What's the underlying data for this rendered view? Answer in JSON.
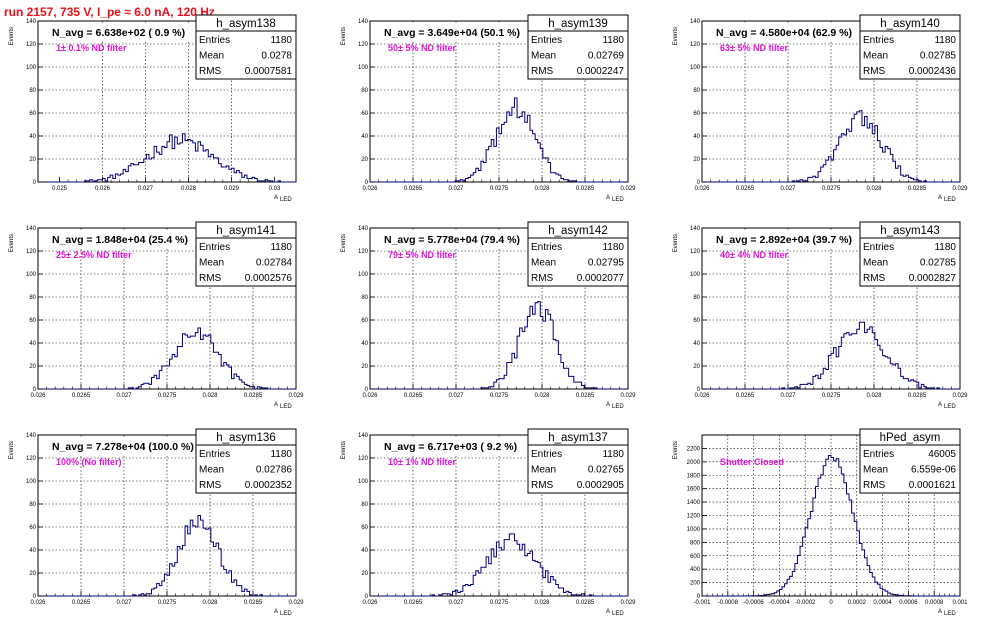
{
  "run_title": "run 2157,   735 V, I_pe ≈ 6.0 nA, 120 Hz",
  "ylabel_text": "Events",
  "xlabel_main": "A",
  "xlabel_sub": "LED",
  "colors": {
    "title": "#e8101a",
    "filter": "#e00fd8",
    "hist": "#00007a",
    "grid": "#000000"
  },
  "chart_data": [
    {
      "type": "histogram",
      "name": "h_asym138",
      "navg": "N_avg = 6.638e+02 ( 0.9 %)",
      "filter": "1± 0.1% ND filter",
      "stats": {
        "Entries": "1180",
        "Mean": "0.0278",
        "RMS": "0.0007581"
      },
      "xlim": [
        0.0245,
        0.0305
      ],
      "ylim": [
        0,
        140
      ],
      "xticks": [
        0.025,
        0.026,
        0.027,
        0.028,
        0.029,
        0.03
      ],
      "xtick_labels": [
        "0.025",
        "0.026",
        "0.027",
        "0.028",
        "0.029",
        "0.03"
      ],
      "yticks": [
        0,
        20,
        40,
        60,
        80,
        100,
        120,
        140
      ],
      "ytick_labels": [
        "0",
        "20",
        "40",
        "60",
        "80",
        "100",
        "120",
        "140"
      ],
      "peak": 40,
      "mean": 0.0278,
      "rms": 0.0007581
    },
    {
      "type": "histogram",
      "name": "h_asym139",
      "navg": "N_avg = 3.649e+04 (50.1 %)",
      "filter": "50± 5% ND filter",
      "stats": {
        "Entries": "1180",
        "Mean": "0.02769",
        "RMS": "0.0002247"
      },
      "xlim": [
        0.026,
        0.029
      ],
      "ylim": [
        0,
        140
      ],
      "xticks": [
        0.026,
        0.0265,
        0.027,
        0.0275,
        0.028,
        0.0285,
        0.029
      ],
      "xtick_labels": [
        "0.026",
        "0.0265",
        "0.027",
        "0.0275",
        "0.028",
        "0.0285",
        "0.029"
      ],
      "yticks": [
        0,
        20,
        40,
        60,
        80,
        100,
        120,
        140
      ],
      "ytick_labels": [
        "0",
        "20",
        "40",
        "60",
        "80",
        "100",
        "120",
        "140"
      ],
      "peak": 72,
      "mean": 0.02769,
      "rms": 0.0002247
    },
    {
      "type": "histogram",
      "name": "h_asym140",
      "navg": "N_avg = 4.580e+04 (62.9 %)",
      "filter": "63± 5% ND filter",
      "stats": {
        "Entries": "1180",
        "Mean": "0.02785",
        "RMS": "0.0002436"
      },
      "xlim": [
        0.026,
        0.029
      ],
      "ylim": [
        0,
        140
      ],
      "xticks": [
        0.026,
        0.0265,
        0.027,
        0.0275,
        0.028,
        0.0285,
        0.029
      ],
      "xtick_labels": [
        "0.026",
        "0.0265",
        "0.027",
        "0.0275",
        "0.028",
        "0.0285",
        "0.029"
      ],
      "yticks": [
        0,
        20,
        40,
        60,
        80,
        100,
        120,
        140
      ],
      "ytick_labels": [
        "0",
        "20",
        "40",
        "60",
        "80",
        "100",
        "120",
        "140"
      ],
      "peak": 64,
      "mean": 0.02785,
      "rms": 0.0002436
    },
    {
      "type": "histogram",
      "name": "h_asym141",
      "navg": "N_avg = 1.848e+04 (25.4 %)",
      "filter": "25± 2.5% ND filter",
      "stats": {
        "Entries": "1180",
        "Mean": "0.02784",
        "RMS": "0.0002576"
      },
      "xlim": [
        0.026,
        0.029
      ],
      "ylim": [
        0,
        140
      ],
      "xticks": [
        0.026,
        0.0265,
        0.027,
        0.0275,
        0.028,
        0.0285,
        0.029
      ],
      "xtick_labels": [
        "0.026",
        "0.0265",
        "0.027",
        "0.0275",
        "0.028",
        "0.0285",
        "0.029"
      ],
      "yticks": [
        0,
        20,
        40,
        60,
        80,
        100,
        120,
        140
      ],
      "ytick_labels": [
        "0",
        "20",
        "40",
        "60",
        "80",
        "100",
        "120",
        "140"
      ],
      "peak": 55,
      "mean": 0.02784,
      "rms": 0.0002576
    },
    {
      "type": "histogram",
      "name": "h_asym142",
      "navg": "N_avg = 5.778e+04 (79.4 %)",
      "filter": "79± 5% ND filter",
      "stats": {
        "Entries": "1180",
        "Mean": "0.02795",
        "RMS": "0.0002077"
      },
      "xlim": [
        0.026,
        0.029
      ],
      "ylim": [
        0,
        140
      ],
      "xticks": [
        0.026,
        0.0265,
        0.027,
        0.0275,
        0.028,
        0.0285,
        0.029
      ],
      "xtick_labels": [
        "0.026",
        "0.0265",
        "0.027",
        "0.0275",
        "0.028",
        "0.0285",
        "0.029"
      ],
      "yticks": [
        0,
        20,
        40,
        60,
        80,
        100,
        120,
        140
      ],
      "ytick_labels": [
        "0",
        "20",
        "40",
        "60",
        "80",
        "100",
        "120",
        "140"
      ],
      "peak": 80,
      "mean": 0.02795,
      "rms": 0.0002077
    },
    {
      "type": "histogram",
      "name": "h_asym143",
      "navg": "N_avg = 2.892e+04 (39.7 %)",
      "filter": "40± 4% ND filter",
      "stats": {
        "Entries": "1180",
        "Mean": "0.02785",
        "RMS": "0.0002827"
      },
      "xlim": [
        0.026,
        0.029
      ],
      "ylim": [
        0,
        140
      ],
      "xticks": [
        0.026,
        0.0265,
        0.027,
        0.0275,
        0.028,
        0.0285,
        0.029
      ],
      "xtick_labels": [
        "0.026",
        "0.0265",
        "0.027",
        "0.0275",
        "0.028",
        "0.0285",
        "0.029"
      ],
      "yticks": [
        0,
        20,
        40,
        60,
        80,
        100,
        120,
        140
      ],
      "ytick_labels": [
        "0",
        "20",
        "40",
        "60",
        "80",
        "100",
        "120",
        "140"
      ],
      "peak": 60,
      "mean": 0.02785,
      "rms": 0.0002827
    },
    {
      "type": "histogram",
      "name": "h_asym136",
      "navg": "N_avg = 7.278e+04 (100.0 %)",
      "filter": "100% (No filter)",
      "stats": {
        "Entries": "1180",
        "Mean": "0.02786",
        "RMS": "0.0002352"
      },
      "xlim": [
        0.026,
        0.029
      ],
      "ylim": [
        0,
        140
      ],
      "xticks": [
        0.026,
        0.0265,
        0.027,
        0.0275,
        0.028,
        0.0285,
        0.029
      ],
      "xtick_labels": [
        "0.026",
        "0.0265",
        "0.027",
        "0.0275",
        "0.028",
        "0.0285",
        "0.029"
      ],
      "yticks": [
        0,
        20,
        40,
        60,
        80,
        100,
        120,
        140
      ],
      "ytick_labels": [
        "0",
        "20",
        "40",
        "60",
        "80",
        "100",
        "120",
        "140"
      ],
      "peak": 70,
      "mean": 0.02786,
      "rms": 0.0002352
    },
    {
      "type": "histogram",
      "name": "h_asym137",
      "navg": "N_avg = 6.717e+03 ( 9.2 %)",
      "filter": "10± 1% ND filter",
      "stats": {
        "Entries": "1180",
        "Mean": "0.02765",
        "RMS": "0.0002905"
      },
      "xlim": [
        0.026,
        0.029
      ],
      "ylim": [
        0,
        140
      ],
      "xticks": [
        0.026,
        0.0265,
        0.027,
        0.0275,
        0.028,
        0.0285,
        0.029
      ],
      "xtick_labels": [
        "0.026",
        "0.0265",
        "0.027",
        "0.0275",
        "0.028",
        "0.0285",
        "0.029"
      ],
      "yticks": [
        0,
        20,
        40,
        60,
        80,
        100,
        120,
        140
      ],
      "ytick_labels": [
        "0",
        "20",
        "40",
        "60",
        "80",
        "100",
        "120",
        "140"
      ],
      "peak": 53,
      "mean": 0.02765,
      "rms": 0.0002905
    },
    {
      "type": "histogram",
      "name": "hPed_asym",
      "navg": "",
      "filter": "Shutter Closed",
      "stats": {
        "Entries": "46005",
        "Mean": "6.559e-06",
        "RMS": "0.0001621"
      },
      "xlim": [
        -0.001,
        0.001
      ],
      "ylim": [
        0,
        2400
      ],
      "xticks": [
        -0.001,
        -0.0008,
        -0.0006,
        -0.0004,
        -0.0002,
        0,
        0.0002,
        0.0004,
        0.0006,
        0.0008,
        0.001
      ],
      "xtick_labels": [
        "-0.001",
        "-0.0008",
        "-0.0006",
        "-0.0004",
        "-0.0002",
        "0",
        "0.0002",
        "0.0004",
        "0.0006",
        "0.0008",
        "0.001"
      ],
      "yticks": [
        0,
        200,
        400,
        600,
        800,
        1000,
        1200,
        1400,
        1600,
        1800,
        2000,
        2200
      ],
      "ytick_labels": [
        "0",
        "200",
        "400",
        "600",
        "800",
        "1000",
        "1200",
        "1400",
        "1600",
        "1800",
        "2000",
        "2200"
      ],
      "peak": 2300,
      "mean": 6.6e-06,
      "rms": 0.0001621
    }
  ]
}
